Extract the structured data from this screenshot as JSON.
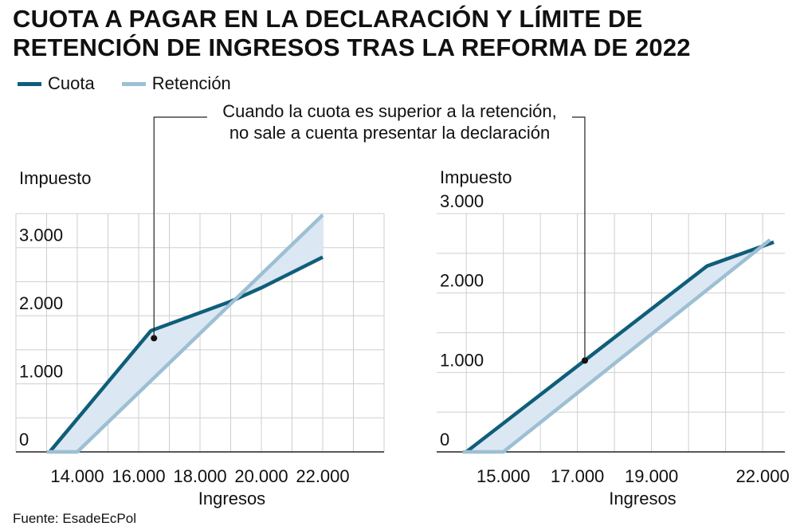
{
  "title": "CUOTA A PAGAR EN LA DECLARACIÓN Y LÍMITE DE RETENCIÓN DE INGRESOS TRAS LA REFORMA DE 2022",
  "legend": [
    {
      "label": "Cuota",
      "color": "#0f5e7a"
    },
    {
      "label": "Retención",
      "color": "#9dbfd3"
    }
  ],
  "annotation": "Cuando la cuota es superior a la retención, no sale a cuenta presentar la declaración",
  "source": "Fuente: EsadeEcPol",
  "colors": {
    "cuota": "#0f5e7a",
    "retencion": "#9dbfd3",
    "fill": "#dbe7f2",
    "grid": "#cfcfcf"
  },
  "chart_data": [
    {
      "type": "line",
      "ylabel": "Impuesto",
      "xlabel": "Ingresos",
      "xlim": [
        12000,
        24000
      ],
      "ylim": [
        0,
        3500
      ],
      "xticks": [
        14000,
        16000,
        18000,
        20000,
        22000
      ],
      "xtick_labels": [
        "14.000",
        "16.000",
        "18.000",
        "20.000",
        "22.000"
      ],
      "yticks": [
        0,
        1000,
        2000,
        3000
      ],
      "ytick_labels": [
        "0",
        "1.000",
        "2.000",
        "3.000"
      ],
      "annotation_point": [
        16500,
        1670
      ],
      "series": [
        {
          "name": "Cuota",
          "x": [
            13100,
            16400,
            19000,
            20000,
            22000
          ],
          "y": [
            0,
            1780,
            2210,
            2410,
            2860
          ]
        },
        {
          "name": "Retención",
          "x": [
            13000,
            14000,
            22000
          ],
          "y": [
            0,
            0,
            3480
          ]
        }
      ]
    },
    {
      "type": "line",
      "ylabel": "Impuesto",
      "xlabel": "Ingresos",
      "xlim": [
        13200,
        22600
      ],
      "ylim": [
        0,
        3000
      ],
      "xticks": [
        15000,
        17000,
        19000,
        22000
      ],
      "xtick_labels": [
        "15.000",
        "17.000",
        "19.000",
        "22.000"
      ],
      "yticks": [
        0,
        1000,
        2000,
        3000
      ],
      "ytick_labels": [
        "0",
        "1.000",
        "2.000",
        "3.000"
      ],
      "annotation_point": [
        17200,
        1150
      ],
      "series": [
        {
          "name": "Cuota",
          "x": [
            14000,
            20500,
            22300
          ],
          "y": [
            0,
            2340,
            2640
          ]
        },
        {
          "name": "Retención",
          "x": [
            13900,
            15000,
            22200
          ],
          "y": [
            0,
            0,
            2670
          ]
        }
      ]
    }
  ]
}
